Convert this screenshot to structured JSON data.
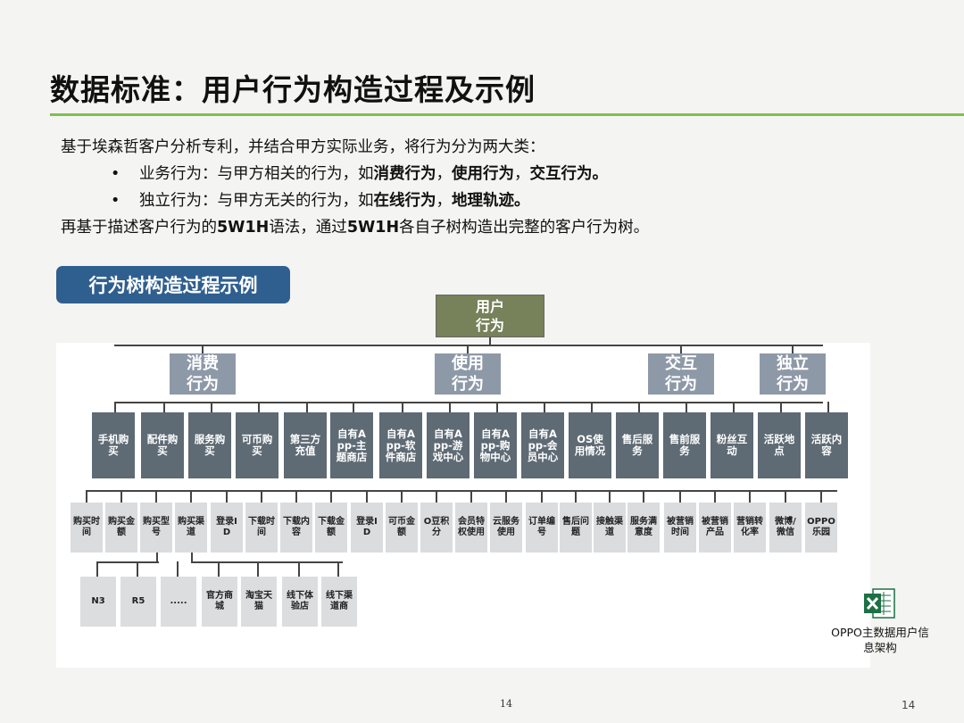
{
  "title": "数据标准：用户行为构造过程及示例",
  "intro": {
    "line1": "基于埃森哲客户分析专利，并结合甲方实际业务，将行为分为两大类：",
    "bullet1_prefix": "业务行为：与甲方相关的行为，如",
    "bullet1_bold": "消费行为",
    "bullet1_sep1": "，",
    "bullet1_bold2": "使用行为",
    "bullet1_sep2": "，",
    "bullet1_bold3": "交互行为。",
    "bullet2_prefix": "独立行为：与甲方无关的行为，如",
    "bullet2_bold": "在线行为",
    "bullet2_sep": "，",
    "bullet2_bold2": "地理轨迹。",
    "line4_prefix": "再基于描述客户行为的",
    "line4_bold1": "5W1H",
    "line4_mid": "语法，通过",
    "line4_bold2": "5W1H",
    "line4_suffix": "各自子树构造出完整的客户行为树。",
    "bullet_symbol": "•"
  },
  "example_tag": "行为树构造过程示例",
  "tree": {
    "root": "用户行为",
    "categories": [
      "消费行为",
      "使用行为",
      "交互行为",
      "独立行为"
    ],
    "subcategories": [
      "手机购买",
      "配件购买",
      "服务购买",
      "可币购买",
      "第三方充值",
      "自有App-主题商店",
      "自有App-软件商店",
      "自有App-游戏中心",
      "自有App-购物中心",
      "自有App-会员中心",
      "OS使用情况",
      "售后服务",
      "售前服务",
      "粉丝互动",
      "活跃地点",
      "活跃内容"
    ],
    "attributes": [
      "购买时间",
      "购买金额",
      "购买型号",
      "购买渠道",
      "登录ID",
      "下载时间",
      "下载内容",
      "下载金额",
      "登录ID",
      "可币金额",
      "O豆积分",
      "会员特权使用",
      "云服务使用",
      "订单编号",
      "售后问题",
      "接触渠道",
      "服务满意度",
      "被营销时间",
      "被营销产品",
      "营销转化率",
      "微博/微信",
      "OPPO乐园"
    ],
    "details": [
      "N3",
      "R5",
      ".....",
      "官方商城",
      "淘宝天猫",
      "线下体验店",
      "线下渠道商"
    ]
  },
  "attachment": {
    "icon": "excel-file-icon",
    "label": "OPPO主数据用户信息架构"
  },
  "footer_center": "14",
  "page_number": "14",
  "colors": {
    "accent_rule": "#7fbf4d",
    "tag_blue": "#2f5f8f",
    "root": "#77815a",
    "category": "#8e99a8",
    "subcategory": "#5e6a74",
    "leaf": "#dadcde"
  }
}
